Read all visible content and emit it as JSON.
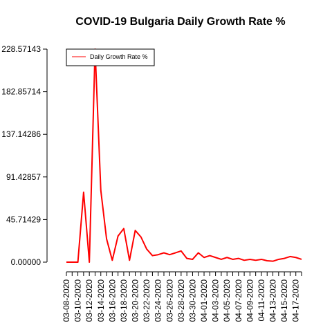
{
  "chart_data": {
    "type": "line",
    "title": "COVID-19 Bulgaria Daily Growth Rate %",
    "xlabel": "",
    "ylabel": "",
    "ylim": [
      0,
      228.57143
    ],
    "yticks": [
      "0.00000",
      "45.71429",
      "91.42857",
      "137.14286",
      "182.85714",
      "228.57143"
    ],
    "x_tick_labels": [
      "03-08-2020",
      "03-10-2020",
      "03-12-2020",
      "03-14-2020",
      "03-16-2020",
      "03-18-2020",
      "03-20-2020",
      "03-22-2020",
      "03-24-2020",
      "03-26-2020",
      "03-28-2020",
      "03-30-2020",
      "04-01-2020",
      "04-03-2020",
      "04-05-2020",
      "04-07-2020",
      "04-09-2020",
      "04-11-2020",
      "04-13-2020",
      "04-15-2020",
      "04-17-2020"
    ],
    "x": [
      "03-08-2020",
      "03-09-2020",
      "03-10-2020",
      "03-11-2020",
      "03-12-2020",
      "03-13-2020",
      "03-14-2020",
      "03-15-2020",
      "03-16-2020",
      "03-17-2020",
      "03-18-2020",
      "03-19-2020",
      "03-20-2020",
      "03-21-2020",
      "03-22-2020",
      "03-23-2020",
      "03-24-2020",
      "03-25-2020",
      "03-26-2020",
      "03-27-2020",
      "03-28-2020",
      "03-29-2020",
      "03-30-2020",
      "03-31-2020",
      "04-01-2020",
      "04-02-2020",
      "04-03-2020",
      "04-04-2020",
      "04-05-2020",
      "04-06-2020",
      "04-07-2020",
      "04-08-2020",
      "04-09-2020",
      "04-10-2020",
      "04-11-2020",
      "04-12-2020",
      "04-13-2020",
      "04-14-2020",
      "04-15-2020",
      "04-16-2020",
      "04-17-2020",
      "04-18-2020"
    ],
    "series": [
      {
        "name": "Daily Growth Rate %",
        "color": "#ff0000",
        "values": [
          0,
          0,
          0,
          75,
          0,
          228.57,
          77,
          25,
          2,
          28,
          36,
          2,
          34,
          27,
          14,
          7,
          8,
          10,
          8,
          10,
          12,
          4,
          3,
          10,
          5,
          7,
          5,
          3,
          5,
          3,
          4,
          2,
          3,
          2,
          3,
          1.5,
          1,
          3,
          4,
          6,
          5,
          3
        ]
      }
    ],
    "legend": {
      "position": "top-left",
      "entries": [
        "Daily Growth Rate %"
      ]
    },
    "grid": false
  }
}
